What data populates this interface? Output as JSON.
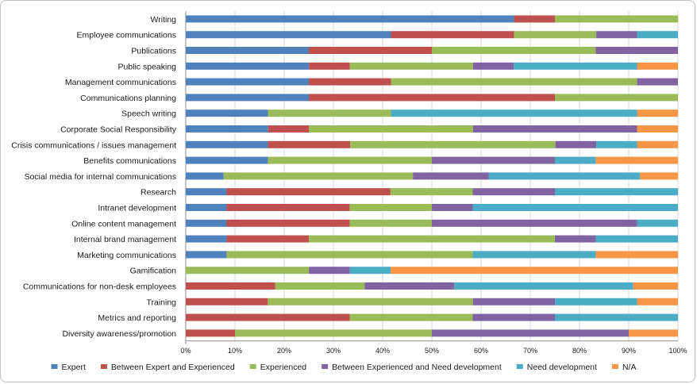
{
  "chart_data": {
    "type": "bar",
    "orientation": "horizontal",
    "stacked": "percent",
    "categories": [
      "Writing",
      "Employee communications",
      "Publications",
      "Public speaking",
      "Management communications",
      "Communications planning",
      "Speech writing",
      "Corporate Social Responsibility",
      "Crisis communications / issues management",
      "Benefits communications",
      "Social media for internal communications",
      "Research",
      "Intranet development",
      "Online content management",
      "Internal brand management",
      "Marketing communications",
      "Gamification",
      "Communications for non-desk employees",
      "Training",
      "Metrics and reporting",
      "Diversity awareness/promotion"
    ],
    "series": [
      {
        "name": "Expert",
        "color": "#4f81bd",
        "values": [
          66.7,
          41.7,
          25,
          25,
          25,
          25,
          16.7,
          16.7,
          16.7,
          16.7,
          7.7,
          8.3,
          8.3,
          8.3,
          8.3,
          8.3,
          0,
          0,
          0,
          0,
          0
        ]
      },
      {
        "name": "Between Expert and Experienced",
        "color": "#c0504d",
        "values": [
          8.3,
          25,
          25,
          8.3,
          16.7,
          50,
          0,
          8.3,
          16.7,
          0,
          0,
          33.3,
          25,
          25,
          16.7,
          0,
          0,
          18.2,
          16.7,
          33.3,
          10
        ]
      },
      {
        "name": "Experienced",
        "color": "#9bbb59",
        "values": [
          25,
          16.7,
          33.3,
          25,
          50,
          25,
          25,
          33.3,
          41.7,
          33.3,
          38.5,
          16.7,
          16.7,
          16.7,
          50,
          50,
          25,
          18.2,
          41.7,
          25,
          40
        ]
      },
      {
        "name": "Between Experienced and Need development",
        "color": "#8064a2",
        "values": [
          0,
          8.3,
          16.7,
          8.3,
          8.3,
          0,
          0,
          33.3,
          8.3,
          25,
          15.4,
          16.7,
          8.3,
          41.7,
          8.3,
          0,
          8.3,
          18.2,
          16.7,
          16.7,
          40
        ]
      },
      {
        "name": "Need development",
        "color": "#4bacc6",
        "values": [
          0,
          8.3,
          0,
          25,
          0,
          0,
          50,
          0,
          8.3,
          8.3,
          30.8,
          25,
          41.7,
          8.3,
          16.7,
          25,
          8.3,
          36.4,
          16.7,
          25,
          0
        ]
      },
      {
        "name": "N/A",
        "color": "#f79646",
        "values": [
          0,
          0,
          0,
          8.3,
          0,
          0,
          8.3,
          8.3,
          8.3,
          16.7,
          7.7,
          0,
          0,
          0,
          0,
          16.7,
          58.3,
          9.1,
          8.3,
          0,
          10
        ]
      }
    ],
    "x_ticks": [
      "0%",
      "10%",
      "20%",
      "30%",
      "40%",
      "50%",
      "60%",
      "70%",
      "80%",
      "90%",
      "100%"
    ],
    "xlim": [
      0,
      100
    ],
    "grid": true,
    "legend_position": "bottom",
    "title": "",
    "xlabel": "",
    "ylabel": ""
  }
}
